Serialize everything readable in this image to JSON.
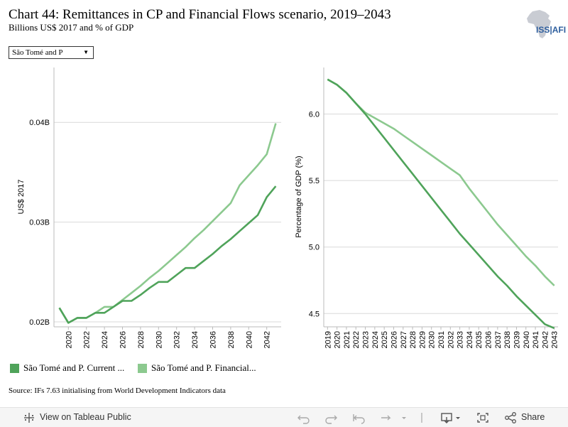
{
  "header": {
    "title": "Chart 44: Remittances in CP and Financial Flows scenario, 2019–2043",
    "subtitle": "Billions US$ 2017 and % of GDP",
    "logo_text": "ISS|AFI"
  },
  "filter": {
    "selected": "São Tomé and P"
  },
  "colors": {
    "current_path": "#4fa35a",
    "financial_flows": "#8cc98f"
  },
  "chart_data": [
    {
      "type": "line",
      "ylabel": "US$ 2017",
      "ylim": [
        0.0195,
        0.0455
      ],
      "y_ticks": [
        {
          "value": 0.02,
          "label": "0.02B"
        },
        {
          "value": 0.03,
          "label": "0.03B"
        },
        {
          "value": 0.04,
          "label": "0.04B"
        }
      ],
      "x_tick_labels": [
        "2020",
        "2022",
        "2024",
        "2026",
        "2028",
        "2030",
        "2032",
        "2034",
        "2036",
        "2038",
        "2040",
        "2042"
      ],
      "x": [
        2019,
        2020,
        2021,
        2022,
        2023,
        2024,
        2025,
        2026,
        2027,
        2028,
        2029,
        2030,
        2031,
        2032,
        2033,
        2034,
        2035,
        2036,
        2037,
        2038,
        2039,
        2040,
        2041,
        2042,
        2043
      ],
      "series": [
        {
          "name": "São Tomé and P. Current ...",
          "color_key": "current_path",
          "values": [
            0.0214,
            0.0199,
            0.0204,
            0.0204,
            0.0209,
            0.0209,
            0.0215,
            0.0221,
            0.0221,
            0.0227,
            0.0234,
            0.024,
            0.024,
            0.0247,
            0.0254,
            0.0254,
            0.0261,
            0.0268,
            0.0276,
            0.0283,
            0.0291,
            0.0299,
            0.0307,
            0.0325,
            0.0336
          ]
        },
        {
          "name": "São Tomé and P. Financial...",
          "color_key": "financial_flows",
          "values": [
            0.0214,
            0.0199,
            0.0204,
            0.0204,
            0.0209,
            0.0215,
            0.0215,
            0.0222,
            0.0229,
            0.0236,
            0.0244,
            0.0251,
            0.0259,
            0.0267,
            0.0275,
            0.0284,
            0.0292,
            0.0301,
            0.031,
            0.0319,
            0.0337,
            0.0347,
            0.0357,
            0.0368,
            0.0399
          ]
        }
      ]
    },
    {
      "type": "line",
      "ylabel": "Percentage of GDP (%)",
      "ylim": [
        4.4,
        6.35
      ],
      "y_ticks": [
        {
          "value": 4.5,
          "label": "4.5"
        },
        {
          "value": 5.0,
          "label": "5.0"
        },
        {
          "value": 5.5,
          "label": "5.5"
        },
        {
          "value": 6.0,
          "label": "6.0"
        }
      ],
      "x_tick_labels": [
        "2019",
        "2020",
        "2021",
        "2022",
        "2023",
        "2024",
        "2025",
        "2026",
        "2027",
        "2028",
        "2029",
        "2030",
        "2031",
        "2032",
        "2033",
        "2034",
        "2035",
        "2036",
        "2037",
        "2038",
        "2039",
        "2040",
        "2041",
        "2042",
        "2043"
      ],
      "x": [
        2019,
        2020,
        2021,
        2022,
        2023,
        2024,
        2025,
        2026,
        2027,
        2028,
        2029,
        2030,
        2031,
        2032,
        2033,
        2034,
        2035,
        2036,
        2037,
        2038,
        2039,
        2040,
        2041,
        2042,
        2043
      ],
      "series": [
        {
          "name": "São Tomé and P. Current ...",
          "color_key": "current_path",
          "values": [
            6.26,
            6.22,
            6.16,
            6.08,
            6.0,
            5.91,
            5.82,
            5.73,
            5.64,
            5.55,
            5.46,
            5.37,
            5.28,
            5.19,
            5.1,
            5.02,
            4.94,
            4.86,
            4.78,
            4.71,
            4.63,
            4.56,
            4.49,
            4.42,
            4.39
          ]
        },
        {
          "name": "São Tomé and P. Financial...",
          "color_key": "financial_flows",
          "values": [
            6.26,
            6.22,
            6.16,
            6.08,
            6.01,
            5.97,
            5.93,
            5.89,
            5.84,
            5.79,
            5.74,
            5.69,
            5.64,
            5.59,
            5.54,
            5.44,
            5.35,
            5.26,
            5.17,
            5.09,
            5.01,
            4.93,
            4.86,
            4.78,
            4.71
          ]
        }
      ]
    }
  ],
  "legend": [
    {
      "label": "São Tomé and P. Current ...",
      "color_key": "current_path"
    },
    {
      "label": "São Tomé and P. Financial...",
      "color_key": "financial_flows"
    }
  ],
  "source": "Source: IFs 7.63 initialising from World Development Indicators data",
  "footer": {
    "view_label": "View on Tableau Public",
    "share_label": "Share",
    "icons": [
      "tableau-icon",
      "undo-icon",
      "redo-icon",
      "revert-icon",
      "refresh-icon",
      "download-icon",
      "fullscreen-icon",
      "share-icon"
    ]
  }
}
